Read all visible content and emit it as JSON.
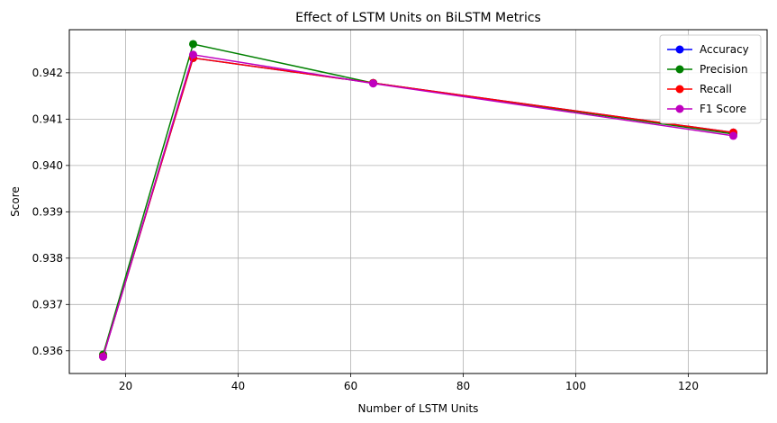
{
  "chart_data": {
    "type": "line",
    "title": "Effect of LSTM Units on BiLSTM Metrics",
    "xlabel": "Number of LSTM Units",
    "ylabel": "Score",
    "x": [
      16,
      32,
      64,
      128
    ],
    "xlim": [
      10,
      134
    ],
    "ylim": [
      0.93551,
      0.94293
    ],
    "xticks": [
      20,
      40,
      60,
      80,
      100,
      120
    ],
    "yticks": [
      0.936,
      0.937,
      0.938,
      0.939,
      0.94,
      0.941,
      0.942
    ],
    "grid": true,
    "legend_position": "top-right",
    "series": [
      {
        "name": "Accuracy",
        "color": "#0000ff",
        "values": [
          0.93588,
          0.94232,
          0.94178,
          0.94071
        ]
      },
      {
        "name": "Precision",
        "color": "#008000",
        "values": [
          0.93592,
          0.94262,
          0.94178,
          0.94068
        ]
      },
      {
        "name": "Recall",
        "color": "#ff0000",
        "values": [
          0.93588,
          0.94232,
          0.94178,
          0.94071
        ]
      },
      {
        "name": "F1 Score",
        "color": "#bf00bf",
        "values": [
          0.93587,
          0.94239,
          0.94177,
          0.94064
        ]
      }
    ]
  }
}
